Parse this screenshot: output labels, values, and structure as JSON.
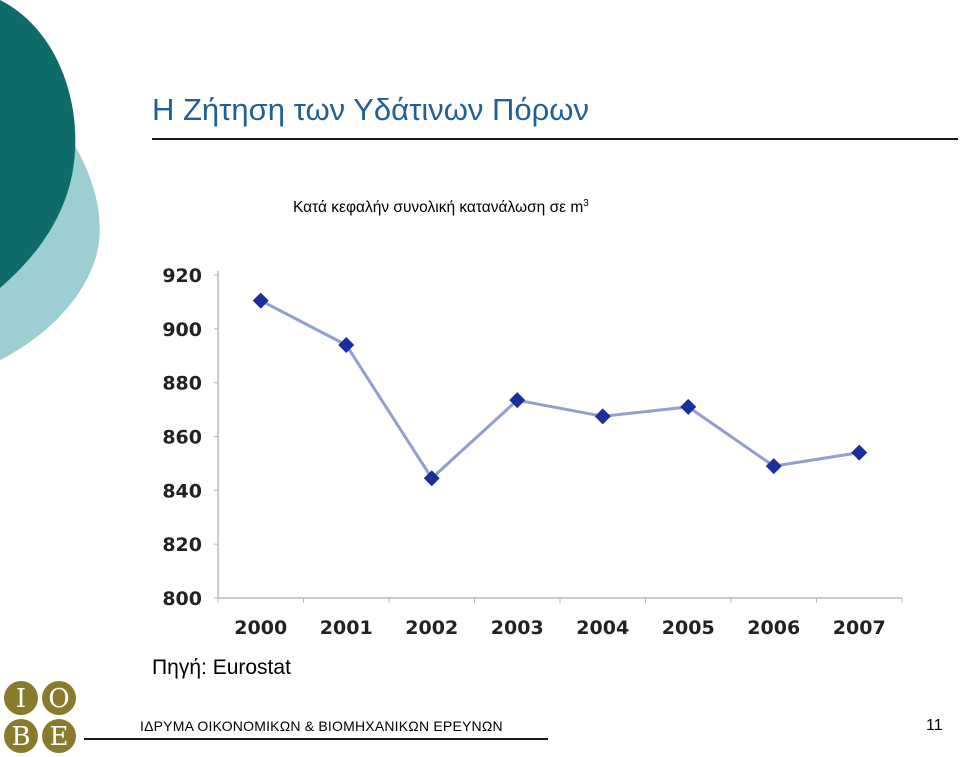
{
  "slide": {
    "title": "Η Ζήτηση των Υδάτινων Πόρων",
    "subtitle_text": "Κατά κεφαλήν συνολική κατανάλωση σε m",
    "subtitle_sup": "3",
    "source": "Πηγή: Eurostat",
    "footer": "ΙΔΡΥΜΑ ΟΙΚΟΝΟΜΙΚΩΝ & ΒΙΟΜΗΧΑΝΙΚΩΝ ΕΡΕΥΝΩΝ",
    "page_number": "11",
    "logo_letters": [
      "Ι",
      "Ο",
      "Β",
      "Ε"
    ]
  },
  "colors": {
    "title": "#1f5f9a",
    "deco_dark": "#0e6b68",
    "deco_light": "#9dcfd2",
    "line": "#8f9fcf",
    "marker": "#1a2f9b",
    "logo_circle": "#8a7a2c"
  },
  "chart_data": {
    "type": "line",
    "categories": [
      "2000",
      "2001",
      "2002",
      "2003",
      "2004",
      "2005",
      "2006",
      "2007"
    ],
    "series": [
      {
        "values": [
          910.5,
          894,
          844.5,
          873.5,
          867.5,
          871,
          849,
          854
        ]
      }
    ],
    "ylim": [
      800,
      920
    ],
    "yticks": [
      800,
      820,
      840,
      860,
      880,
      900,
      920
    ],
    "grid": false,
    "legend": "none",
    "title": "",
    "xlabel": "",
    "ylabel": ""
  }
}
